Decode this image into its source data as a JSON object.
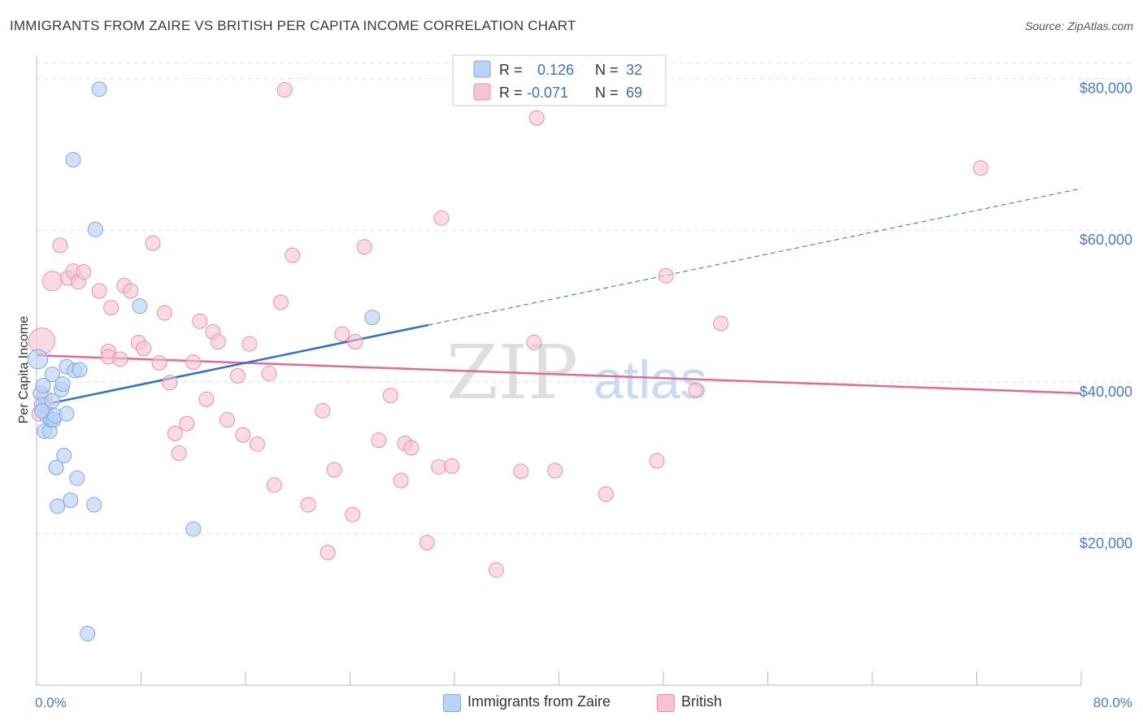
{
  "title": "IMMIGRANTS FROM ZAIRE VS BRITISH PER CAPITA INCOME CORRELATION CHART",
  "source": "Source: ZipAtlas.com",
  "watermark": {
    "zip": "ZIP",
    "atlas": "atlas"
  },
  "colors": {
    "blue_fill": "#b9d3f5",
    "blue_stroke": "#7ea8e4",
    "blue_line": "#2f6fcf",
    "pink_fill": "#f7c3d2",
    "pink_stroke": "#e892ad",
    "pink_line": "#e36b93",
    "axis_text": "#4a7bd0",
    "grid": "#dddddd"
  },
  "stats_box": {
    "rows": [
      {
        "r_label": "R =",
        "r_value": "0.126",
        "n_label": "N =",
        "n_value": "32"
      },
      {
        "r_label": "R =",
        "r_value": "-0.071",
        "n_label": "N =",
        "n_value": "69"
      }
    ]
  },
  "legend": [
    {
      "label": "Immigrants from Zaire",
      "color": "blue"
    },
    {
      "label": "British",
      "color": "pink"
    }
  ],
  "chart_data": {
    "type": "scatter",
    "title": "IMMIGRANTS FROM ZAIRE VS BRITISH PER CAPITA INCOME CORRELATION CHART",
    "xlabel": "",
    "ylabel": "Per Capita Income",
    "xlim": [
      0,
      80
    ],
    "ylim": [
      0,
      82000
    ],
    "x_tick_labels": [
      "0.0%",
      "80.0%"
    ],
    "y_ticks": [
      20000,
      40000,
      60000,
      80000
    ],
    "y_tick_labels": [
      "$20,000",
      "$40,000",
      "$60,000",
      "$80,000"
    ],
    "grid": true,
    "series": [
      {
        "name": "Immigrants from Zaire",
        "color": "blue",
        "points": [
          [
            0.1,
            43000
          ],
          [
            0.3,
            38500
          ],
          [
            0.4,
            37000
          ],
          [
            0.5,
            39500
          ],
          [
            0.6,
            33500
          ],
          [
            0.8,
            35500
          ],
          [
            1.0,
            33500
          ],
          [
            1.1,
            35000
          ],
          [
            1.2,
            41000
          ],
          [
            1.3,
            35000
          ],
          [
            1.4,
            35500
          ],
          [
            1.5,
            28700
          ],
          [
            1.6,
            23600
          ],
          [
            1.9,
            39000
          ],
          [
            2.0,
            39700
          ],
          [
            2.1,
            30300
          ],
          [
            2.3,
            42000
          ],
          [
            2.3,
            35800
          ],
          [
            2.6,
            24400
          ],
          [
            2.8,
            69300
          ],
          [
            2.9,
            41500
          ],
          [
            3.1,
            27300
          ],
          [
            3.3,
            41600
          ],
          [
            3.9,
            6800
          ],
          [
            4.4,
            23800
          ],
          [
            4.5,
            60100
          ],
          [
            4.8,
            78600
          ],
          [
            7.9,
            50000
          ],
          [
            12.0,
            20600
          ],
          [
            25.7,
            48500
          ],
          [
            0.4,
            36200
          ],
          [
            1.2,
            37500
          ]
        ],
        "trend": {
          "x_start": 0,
          "y_start": 36800,
          "x_end": 30,
          "y_end": 47500,
          "dashed_to_x": 80,
          "dashed_to_y": 65500
        }
      },
      {
        "name": "British",
        "color": "pink",
        "points": [
          [
            0.4,
            45400
          ],
          [
            0.6,
            38000
          ],
          [
            0.7,
            37000
          ],
          [
            1.2,
            53300
          ],
          [
            1.8,
            58000
          ],
          [
            2.4,
            53700
          ],
          [
            2.8,
            54600
          ],
          [
            3.2,
            53200
          ],
          [
            3.6,
            54500
          ],
          [
            4.8,
            52000
          ],
          [
            5.7,
            49800
          ],
          [
            5.5,
            44000
          ],
          [
            5.5,
            43300
          ],
          [
            6.4,
            43000
          ],
          [
            6.7,
            52700
          ],
          [
            7.2,
            52000
          ],
          [
            7.8,
            45200
          ],
          [
            8.2,
            44400
          ],
          [
            8.9,
            58300
          ],
          [
            9.4,
            42500
          ],
          [
            9.8,
            49100
          ],
          [
            10.2,
            39900
          ],
          [
            10.6,
            33200
          ],
          [
            10.9,
            30600
          ],
          [
            11.5,
            34500
          ],
          [
            12.0,
            42600
          ],
          [
            12.5,
            48000
          ],
          [
            13.0,
            37700
          ],
          [
            13.5,
            46600
          ],
          [
            13.9,
            45300
          ],
          [
            14.6,
            35000
          ],
          [
            15.4,
            40800
          ],
          [
            15.8,
            33000
          ],
          [
            16.3,
            45000
          ],
          [
            16.9,
            31800
          ],
          [
            17.8,
            41100
          ],
          [
            18.2,
            26400
          ],
          [
            18.7,
            50500
          ],
          [
            19.0,
            78500
          ],
          [
            19.6,
            56700
          ],
          [
            20.8,
            23800
          ],
          [
            21.9,
            36200
          ],
          [
            22.3,
            17500
          ],
          [
            22.8,
            28400
          ],
          [
            23.4,
            46300
          ],
          [
            24.2,
            22500
          ],
          [
            24.4,
            45300
          ],
          [
            25.1,
            57800
          ],
          [
            26.2,
            32300
          ],
          [
            27.1,
            38200
          ],
          [
            27.9,
            27000
          ],
          [
            28.2,
            31900
          ],
          [
            28.7,
            31300
          ],
          [
            29.9,
            18800
          ],
          [
            30.8,
            28800
          ],
          [
            31.0,
            61600
          ],
          [
            31.8,
            28900
          ],
          [
            35.2,
            15200
          ],
          [
            37.1,
            28200
          ],
          [
            38.1,
            45200
          ],
          [
            38.3,
            74800
          ],
          [
            39.7,
            28300
          ],
          [
            43.6,
            25200
          ],
          [
            47.5,
            29600
          ],
          [
            48.2,
            54000
          ],
          [
            50.5,
            38900
          ],
          [
            52.4,
            47700
          ],
          [
            72.3,
            68200
          ],
          [
            0.2,
            35800
          ]
        ],
        "trend": {
          "x_start": 0,
          "y_start": 43500,
          "x_end": 80,
          "y_end": 38500
        }
      }
    ]
  }
}
